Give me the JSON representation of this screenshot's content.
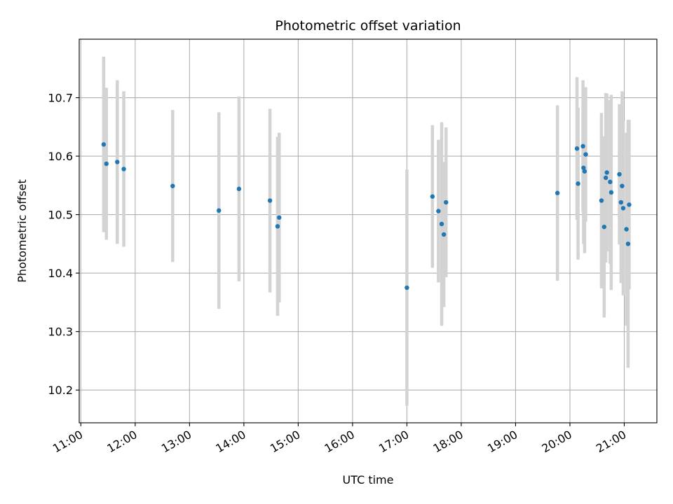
{
  "chart_data": {
    "type": "scatter",
    "title": "Photometric offset variation",
    "xlabel": "UTC time",
    "ylabel": "Photometric offset",
    "grid": true,
    "x_unit": "hours UTC",
    "xlim": [
      10.97,
      21.6
    ],
    "ylim": [
      10.144,
      10.8
    ],
    "x_ticks": [
      {
        "value": 11,
        "label": "11:00"
      },
      {
        "value": 12,
        "label": "12:00"
      },
      {
        "value": 13,
        "label": "13:00"
      },
      {
        "value": 14,
        "label": "14:00"
      },
      {
        "value": 15,
        "label": "15:00"
      },
      {
        "value": 16,
        "label": "16:00"
      },
      {
        "value": 17,
        "label": "17:00"
      },
      {
        "value": 18,
        "label": "18:00"
      },
      {
        "value": 19,
        "label": "19:00"
      },
      {
        "value": 20,
        "label": "20:00"
      },
      {
        "value": 21,
        "label": "21:00"
      }
    ],
    "y_ticks": [
      {
        "value": 10.2,
        "label": "10.2"
      },
      {
        "value": 10.3,
        "label": "10.3"
      },
      {
        "value": 10.4,
        "label": "10.4"
      },
      {
        "value": 10.5,
        "label": "10.5"
      },
      {
        "value": 10.6,
        "label": "10.6"
      },
      {
        "value": 10.7,
        "label": "10.7"
      }
    ],
    "point_color": "#1f77b4",
    "errorbar_color": "#d3d3d3",
    "points": [
      {
        "x": 11.42,
        "y": 10.62,
        "err": 0.15
      },
      {
        "x": 11.47,
        "y": 10.587,
        "err": 0.13
      },
      {
        "x": 11.67,
        "y": 10.59,
        "err": 0.14
      },
      {
        "x": 11.79,
        "y": 10.578,
        "err": 0.133
      },
      {
        "x": 12.69,
        "y": 10.549,
        "err": 0.13
      },
      {
        "x": 13.54,
        "y": 10.507,
        "err": 0.168
      },
      {
        "x": 13.91,
        "y": 10.544,
        "err": 0.158
      },
      {
        "x": 14.48,
        "y": 10.524,
        "err": 0.157
      },
      {
        "x": 14.62,
        "y": 10.48,
        "err": 0.153
      },
      {
        "x": 14.65,
        "y": 10.495,
        "err": 0.145
      },
      {
        "x": 17.0,
        "y": 10.375,
        "err": 0.202
      },
      {
        "x": 17.47,
        "y": 10.531,
        "err": 0.122
      },
      {
        "x": 17.58,
        "y": 10.506,
        "err": 0.122
      },
      {
        "x": 17.64,
        "y": 10.484,
        "err": 0.174
      },
      {
        "x": 17.68,
        "y": 10.466,
        "err": 0.124
      },
      {
        "x": 17.72,
        "y": 10.521,
        "err": 0.128
      },
      {
        "x": 19.77,
        "y": 10.537,
        "err": 0.15
      },
      {
        "x": 20.13,
        "y": 10.613,
        "err": 0.122
      },
      {
        "x": 20.15,
        "y": 10.553,
        "err": 0.13
      },
      {
        "x": 20.24,
        "y": 10.617,
        "err": 0.113
      },
      {
        "x": 20.25,
        "y": 10.58,
        "err": 0.13
      },
      {
        "x": 20.27,
        "y": 10.574,
        "err": 0.14
      },
      {
        "x": 20.29,
        "y": 10.603,
        "err": 0.115
      },
      {
        "x": 20.58,
        "y": 10.524,
        "err": 0.15
      },
      {
        "x": 20.63,
        "y": 10.479,
        "err": 0.155
      },
      {
        "x": 20.66,
        "y": 10.563,
        "err": 0.145
      },
      {
        "x": 20.68,
        "y": 10.572,
        "err": 0.135
      },
      {
        "x": 20.74,
        "y": 10.556,
        "err": 0.14
      },
      {
        "x": 20.76,
        "y": 10.538,
        "err": 0.167
      },
      {
        "x": 20.91,
        "y": 10.569,
        "err": 0.12
      },
      {
        "x": 20.94,
        "y": 10.521,
        "err": 0.138
      },
      {
        "x": 20.96,
        "y": 10.549,
        "err": 0.162
      },
      {
        "x": 20.98,
        "y": 10.511,
        "err": 0.149
      },
      {
        "x": 21.04,
        "y": 10.475,
        "err": 0.165
      },
      {
        "x": 21.07,
        "y": 10.45,
        "err": 0.212
      },
      {
        "x": 21.09,
        "y": 10.517,
        "err": 0.145
      }
    ]
  }
}
